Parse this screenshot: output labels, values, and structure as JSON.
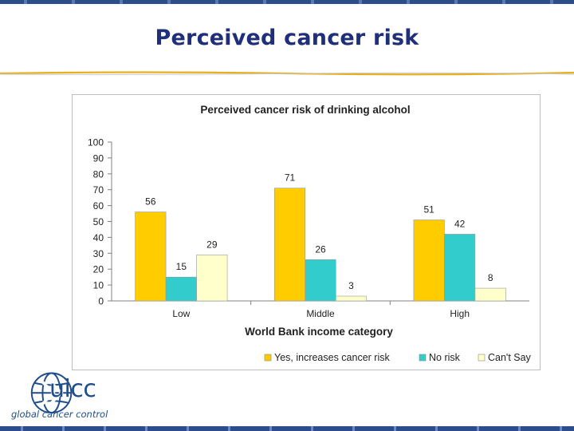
{
  "slide": {
    "title": "Perceived cancer risk"
  },
  "logo": {
    "name": "uicc",
    "tagline": "global cancer control"
  },
  "colors": {
    "yes": "#ffcc00",
    "no": "#33cccc",
    "cant": "#ffffcc",
    "title": "#1f2f7a",
    "brand": "#1f4e8c"
  },
  "chart_data": {
    "type": "bar",
    "title": "Perceived cancer risk of drinking alcohol",
    "xlabel": "World Bank income category",
    "ylabel": "",
    "categories": [
      "Low",
      "Middle",
      "High"
    ],
    "ylim": [
      0,
      100
    ],
    "yticks": [
      0,
      10,
      20,
      30,
      40,
      50,
      60,
      70,
      80,
      90,
      100
    ],
    "grid": false,
    "legend": "bottom",
    "series": [
      {
        "name": "Yes, increases cancer risk",
        "values": [
          56,
          71,
          51
        ],
        "color": "#ffcc00"
      },
      {
        "name": "No risk",
        "values": [
          15,
          26,
          42
        ],
        "color": "#33cccc"
      },
      {
        "name": "Can't Say",
        "values": [
          29,
          3,
          8
        ],
        "color": "#ffffcc"
      }
    ]
  }
}
